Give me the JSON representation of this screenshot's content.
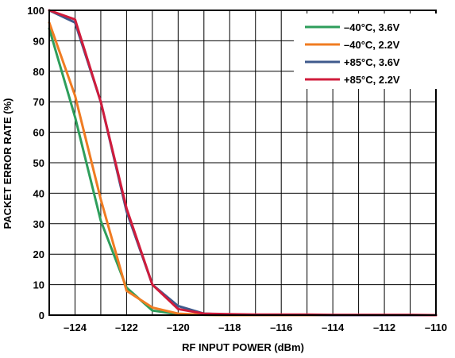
{
  "chart_data": {
    "type": "line",
    "title": "",
    "xlabel": "RF INPUT POWER (dBm)",
    "ylabel": "PACKET ERROR RATE (%)",
    "xlim": [
      -125,
      -110
    ],
    "ylim": [
      0,
      100
    ],
    "x_ticks": [
      -124,
      -122,
      -120,
      -118,
      -116,
      -114,
      -112,
      -110
    ],
    "x_tick_labels": [
      "–124",
      "–122",
      "–120",
      "–118",
      "–116",
      "–114",
      "–112",
      "–110"
    ],
    "y_ticks": [
      0,
      10,
      20,
      30,
      40,
      50,
      60,
      70,
      80,
      90,
      100
    ],
    "y_tick_labels": [
      "0",
      "10",
      "20",
      "30",
      "40",
      "50",
      "60",
      "70",
      "80",
      "90",
      "100"
    ],
    "grid": true,
    "legend_position": "top-right",
    "series": [
      {
        "name": "–40°C, 3.6V",
        "color": "#2e9e5b",
        "x": [
          -125,
          -124,
          -123,
          -122,
          -121,
          -120,
          -119,
          -118,
          -117,
          -116,
          -115,
          -114,
          -113,
          -112,
          -111,
          -110
        ],
        "y": [
          94,
          65,
          31,
          9,
          1.5,
          0.3,
          0.1,
          0,
          0,
          0,
          0,
          0,
          0,
          0,
          0,
          0
        ]
      },
      {
        "name": "–40°C, 2.2V",
        "color": "#f07c22",
        "x": [
          -125,
          -124,
          -123,
          -122,
          -121,
          -120,
          -119,
          -118,
          -117,
          -116,
          -115,
          -114,
          -113,
          -112,
          -111,
          -110
        ],
        "y": [
          96,
          72,
          38,
          8,
          2.5,
          0.5,
          0.1,
          0,
          0,
          0,
          0,
          0,
          0,
          0,
          0,
          0
        ]
      },
      {
        "name": "+85°C, 3.6V",
        "color": "#3f5a8c",
        "x": [
          -125,
          -124,
          -123,
          -122,
          -121,
          -120,
          -119,
          -118,
          -117,
          -116,
          -115,
          -114,
          -113,
          -112,
          -111,
          -110
        ],
        "y": [
          100,
          96,
          70,
          34,
          10,
          3,
          0.5,
          0.2,
          0.1,
          0.1,
          0.1,
          0,
          0,
          0,
          0,
          0
        ]
      },
      {
        "name": "+85°C, 2.2V",
        "color": "#d01c3c",
        "x": [
          -125,
          -124,
          -123,
          -122,
          -121,
          -120,
          -119,
          -118,
          -117,
          -116,
          -115,
          -114,
          -113,
          -112,
          -111,
          -110
        ],
        "y": [
          100,
          97,
          70,
          35,
          10,
          2,
          0.5,
          0.3,
          0.2,
          0.2,
          0.2,
          0.1,
          0.1,
          0.1,
          0.1,
          0
        ]
      }
    ]
  }
}
